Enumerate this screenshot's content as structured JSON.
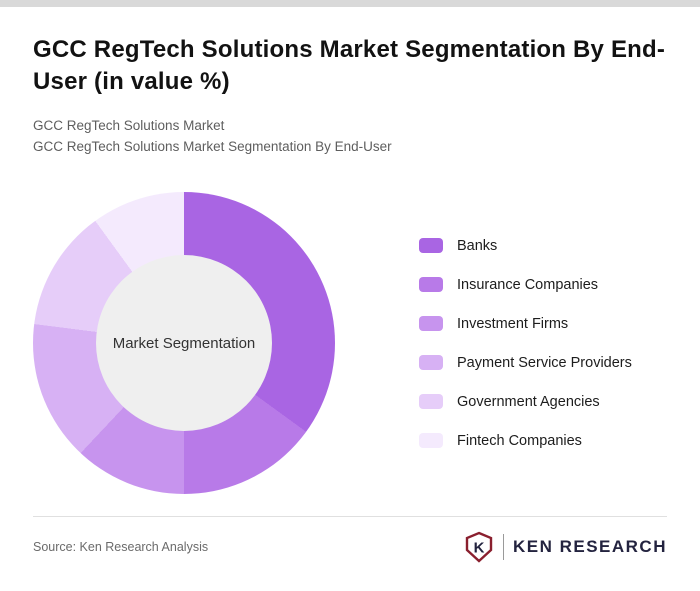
{
  "page": {
    "title": "GCC RegTech Solutions Market Segmentation By End-User (in value %)",
    "subtitle1": "GCC RegTech Solutions Market",
    "subtitle2": "GCC RegTech Solutions Market Segmentation By End-User",
    "source": "Source: Ken Research Analysis",
    "logo": {
      "letter": "K",
      "text": "KEN RESEARCH",
      "shield_color": "#8a1f2e",
      "text_color": "#23233f"
    }
  },
  "chart_data": {
    "type": "pie",
    "donut": true,
    "title": "GCC RegTech Solutions Market Segmentation By End-User (in value %)",
    "center_label": "Market Segmentation",
    "legend_position": "right",
    "start_angle_deg": 0,
    "units": "value %",
    "categories": [
      "Banks",
      "Insurance Companies",
      "Investment Firms",
      "Payment Service Providers",
      "Government Agencies",
      "Fintech Companies"
    ],
    "values": [
      35,
      15,
      12,
      15,
      13,
      10
    ],
    "colors": [
      "#a965e3",
      "#b87ae8",
      "#c794ee",
      "#d7b1f4",
      "#e6cdf9",
      "#f4eafd"
    ],
    "hole_color": "#efefef"
  }
}
